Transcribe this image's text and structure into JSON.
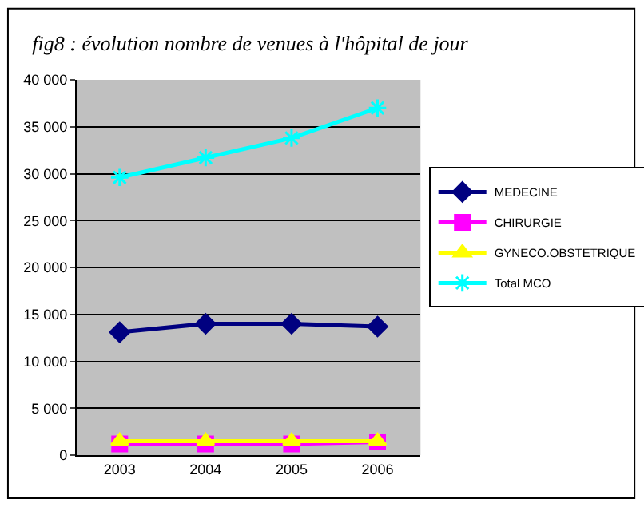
{
  "chart_data": {
    "type": "line",
    "title": "fig8 : évolution nombre de venues à l'hôpital de jour",
    "categories": [
      "2003",
      "2004",
      "2005",
      "2006"
    ],
    "series": [
      {
        "name": "MEDECINE",
        "color": "#000080",
        "marker": "diamond",
        "values": [
          13100,
          14000,
          14000,
          13700
        ]
      },
      {
        "name": "CHIRURGIE",
        "color": "#ff00ff",
        "marker": "square",
        "values": [
          1200,
          1200,
          1200,
          1400
        ]
      },
      {
        "name": "GYNECO.OBSTETRIQUE",
        "color": "#ffff00",
        "marker": "triangle",
        "values": [
          1500,
          1500,
          1500,
          1500
        ]
      },
      {
        "name": "Total MCO",
        "color": "#00ffff",
        "marker": "cross",
        "values": [
          29600,
          31700,
          33800,
          37000
        ]
      }
    ],
    "ylim": [
      0,
      40000
    ],
    "yticks": [
      {
        "value": 0,
        "label": "0"
      },
      {
        "value": 5000,
        "label": "5 000"
      },
      {
        "value": 10000,
        "label": "10 000"
      },
      {
        "value": 15000,
        "label": "15 000"
      },
      {
        "value": 20000,
        "label": "20 000"
      },
      {
        "value": 25000,
        "label": "25 000"
      },
      {
        "value": 30000,
        "label": "30 000"
      },
      {
        "value": 35000,
        "label": "35 000"
      },
      {
        "value": 40000,
        "label": "40 000"
      }
    ],
    "grid": "y",
    "legend": "right"
  }
}
